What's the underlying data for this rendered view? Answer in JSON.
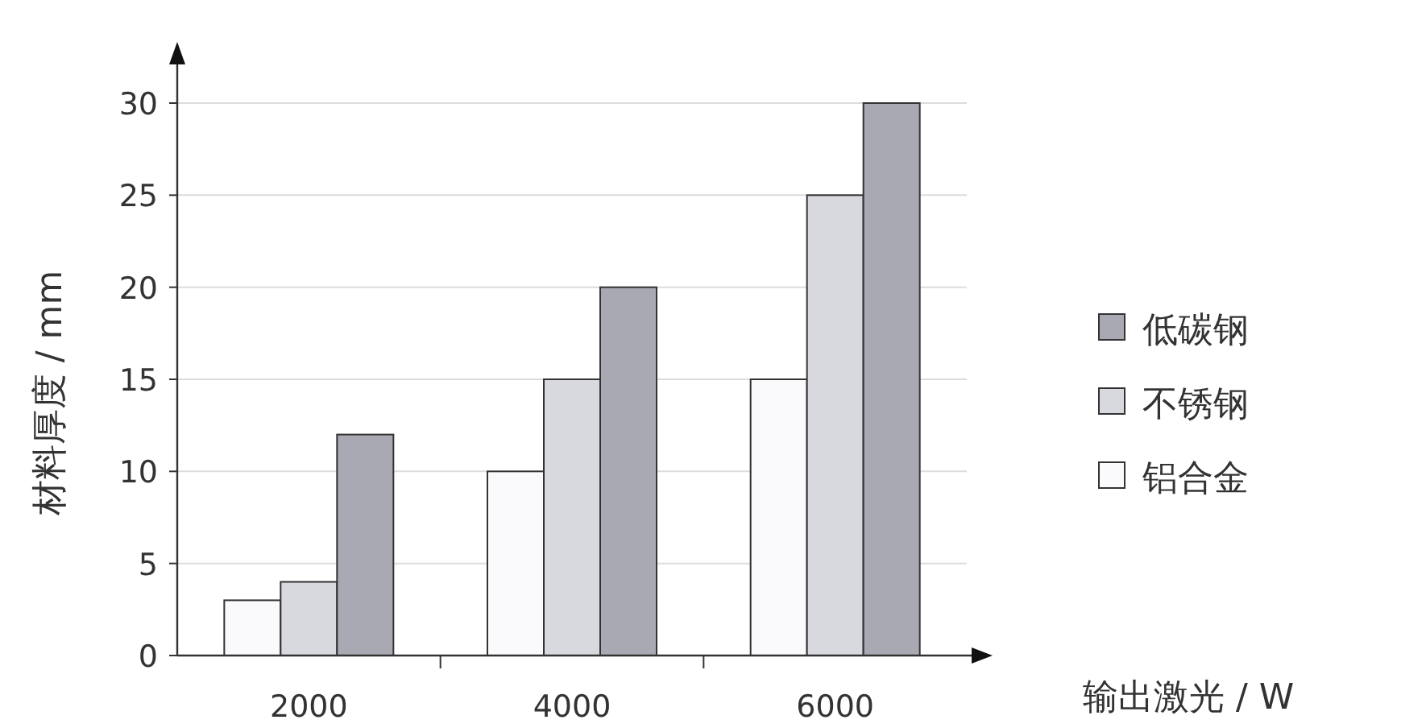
{
  "chart_data": {
    "type": "bar",
    "xlabel": "输出激光 / W",
    "ylabel": "材料厚度 / mm",
    "categories": [
      "2000",
      "4000",
      "6000"
    ],
    "series": [
      {
        "name": "铝合金",
        "color": "#fafafc",
        "values": [
          3,
          10,
          15
        ]
      },
      {
        "name": "不锈钢",
        "color": "#d8d9de",
        "values": [
          4,
          15,
          25
        ]
      },
      {
        "name": "低碳钢",
        "color": "#a9a9b4",
        "values": [
          12,
          20,
          30
        ]
      }
    ],
    "ylim": [
      0,
      30
    ],
    "yticks": [
      0,
      5,
      10,
      15,
      20,
      25,
      30
    ],
    "grid": "y",
    "legend": "right"
  }
}
